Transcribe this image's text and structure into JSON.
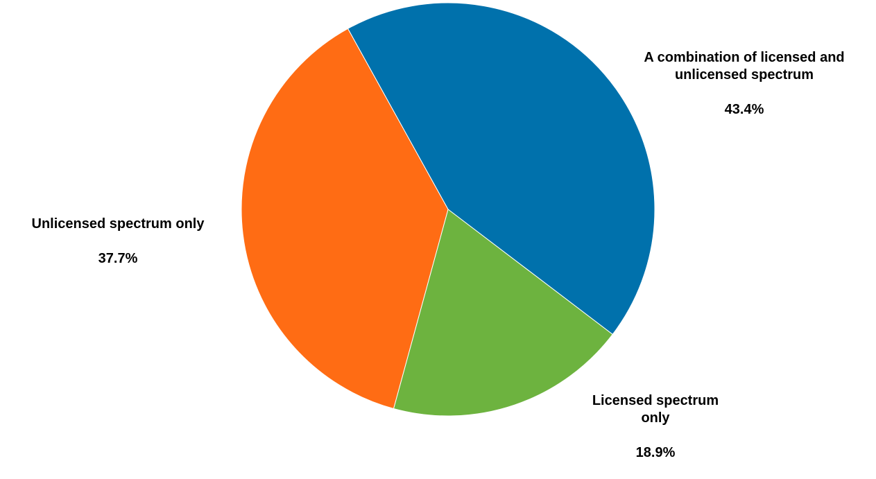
{
  "chart_data": {
    "type": "pie",
    "title": "",
    "slices": [
      {
        "name": "A combination of licensed and\nunlicensed spectrum",
        "value": 43.4,
        "label": "43.4%",
        "color": "#0071AC"
      },
      {
        "name": "Licensed spectrum\nonly",
        "value": 18.9,
        "label": "18.9%",
        "color": "#6DB33F"
      },
      {
        "name": "Unlicensed spectrum only",
        "value": 37.7,
        "label": "37.7%",
        "color": "#FF6C14"
      }
    ],
    "start_angle_deg": -29,
    "direction": "clockwise",
    "legend": "none"
  }
}
